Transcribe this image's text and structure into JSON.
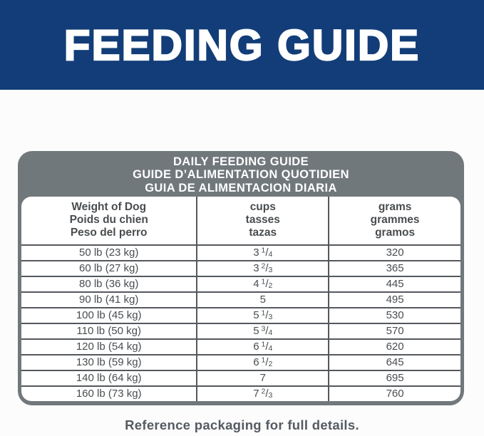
{
  "banner": {
    "title": "FEEDING GUIDE",
    "bg_color": "#123d78",
    "text_color": "#ffffff"
  },
  "panel": {
    "bg_color": "#71787c",
    "title_lines": [
      "DAILY FEEDING GUIDE",
      "GUIDE D’ALIMENTATION QUOTIDIEN",
      "GUIA DE ALIMENTACION DIARIA"
    ]
  },
  "table": {
    "line_color": "#54585c",
    "text_color": "#494d50",
    "columns": [
      {
        "id": "weight",
        "lines": [
          "Weight of Dog",
          "Poids du chien",
          "Peso del perro"
        ]
      },
      {
        "id": "cups",
        "lines": [
          "cups",
          "tasses",
          "tazas"
        ]
      },
      {
        "id": "grams",
        "lines": [
          "grams",
          "grammes",
          "gramos"
        ]
      }
    ],
    "rows": [
      {
        "weight": "50 lb (23 kg)",
        "cups": "3 1/4",
        "grams": "320"
      },
      {
        "weight": "60 lb (27 kg)",
        "cups": "3 2/3",
        "grams": "365"
      },
      {
        "weight": "80 lb (36 kg)",
        "cups": "4 1/2",
        "grams": "445"
      },
      {
        "weight": "90 lb (41 kg)",
        "cups": "5",
        "grams": "495"
      },
      {
        "weight": "100 lb (45 kg)",
        "cups": "5 1/3",
        "grams": "530"
      },
      {
        "weight": "110 lb (50 kg)",
        "cups": "5 3/4",
        "grams": "570"
      },
      {
        "weight": "120 lb (54 kg)",
        "cups": "6 1/4",
        "grams": "620"
      },
      {
        "weight": "130 lb (59 kg)",
        "cups": "6 1/2",
        "grams": "645"
      },
      {
        "weight": "140 lb (64 kg)",
        "cups": "7",
        "grams": "695"
      },
      {
        "weight": "160 lb (73 kg)",
        "cups": "7 2/3",
        "grams": "760"
      }
    ]
  },
  "footer": {
    "note": "Reference packaging for full details."
  }
}
